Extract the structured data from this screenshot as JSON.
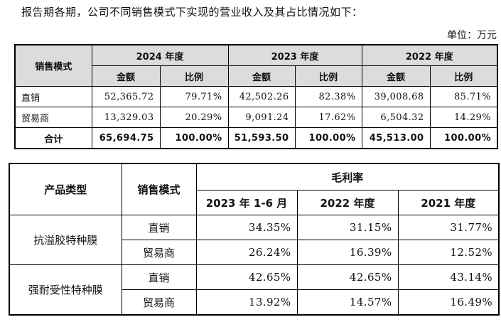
{
  "intro_text": "报告期各期，公司不同销售模式下实现的营业收入及其占比情况如下：",
  "unit_label": "单位：万元",
  "table1": {
    "mode_header": "销售模式",
    "years": [
      "2024 年度",
      "2023 年度",
      "2022 年度"
    ],
    "amount_label": "金额",
    "ratio_label": "比例",
    "rows": [
      {
        "label": "直销",
        "cells": [
          "52,365.72",
          "79.71%",
          "42,502.26",
          "82.38%",
          "39,008.68",
          "85.71%"
        ]
      },
      {
        "label": "贸易商",
        "cells": [
          "13,329.03",
          "20.29%",
          "9,091.24",
          "17.62%",
          "6,504.32",
          "14.29%"
        ]
      }
    ],
    "total": {
      "label": "合计",
      "cells": [
        "65,694.75",
        "100.00%",
        "51,593.50",
        "100.00%",
        "45,513.00",
        "100.00%"
      ]
    }
  },
  "table2": {
    "product_header": "产品类型",
    "mode_header": "销售模式",
    "margin_header": "毛利率",
    "periods": [
      "2023 年 1-6 月",
      "2022 年度",
      "2021 年度"
    ],
    "groups": [
      {
        "product": "抗溢胶特种膜",
        "rows": [
          {
            "mode": "直销",
            "values": [
              "34.35%",
              "31.15%",
              "31.77%"
            ]
          },
          {
            "mode": "贸易商",
            "values": [
              "26.24%",
              "16.39%",
              "12.52%"
            ]
          }
        ]
      },
      {
        "product": "强耐受性特种膜",
        "rows": [
          {
            "mode": "直销",
            "values": [
              "42.65%",
              "42.65%",
              "43.14%"
            ]
          },
          {
            "mode": "贸易商",
            "values": [
              "13.92%",
              "14.57%",
              "16.49%"
            ]
          }
        ]
      }
    ]
  }
}
